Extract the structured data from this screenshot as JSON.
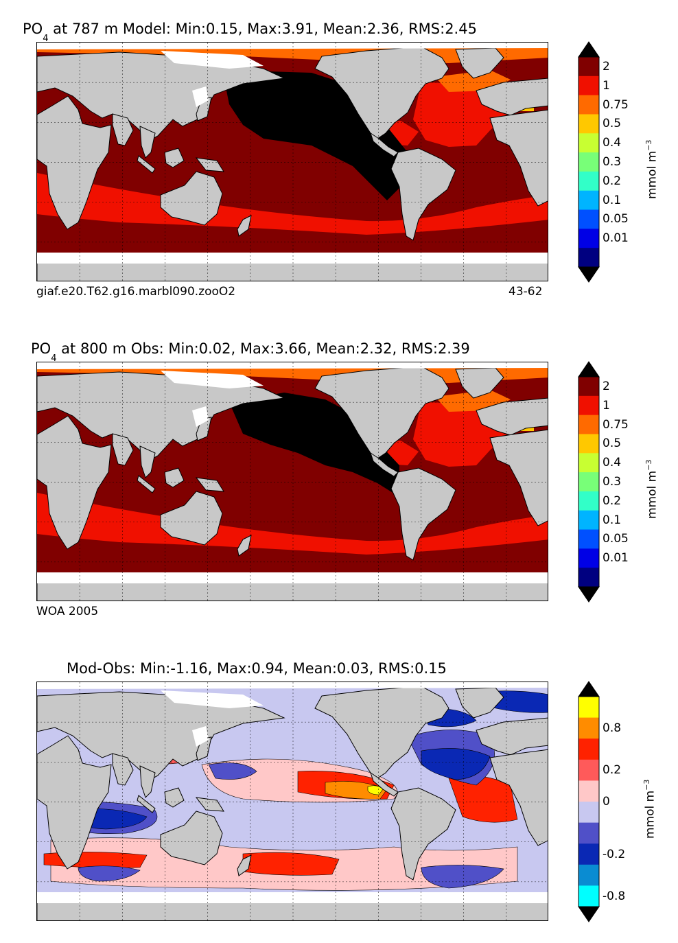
{
  "panels": [
    {
      "title_prefix": "PO",
      "title_subscript": "4",
      "title_rest": " at 787 m Model: Min:0.15, Max:3.91, Mean:2.36, RMS:2.45",
      "footer_left": "giaf.e20.T62.g16.marbl090.zooO2",
      "footer_right": "43-62"
    },
    {
      "title_prefix": "PO",
      "title_subscript": "4",
      "title_rest": " at 800 m Obs: Min:0.02, Max:3.66, Mean:2.32, RMS:2.39",
      "footer_left": "WOA 2005",
      "footer_right": ""
    },
    {
      "title_prefix": "",
      "title_subscript": "",
      "title_rest": "Mod-Obs: Min:-1.16, Max:0.94, Mean:0.03, RMS:0.15",
      "footer_left": "",
      "footer_right": ""
    }
  ],
  "colorbar_po4": {
    "labels": [
      "2",
      "1",
      "0.75",
      "0.5",
      "0.4",
      "0.3",
      "0.2",
      "0.1",
      "0.05",
      "0.01"
    ],
    "colors": [
      "#800000",
      "#f01000",
      "#ff6a00",
      "#ffc800",
      "#c8ff32",
      "#78ff78",
      "#32ffc8",
      "#00b4ff",
      "#0050ff",
      "#0000e6",
      "#000080"
    ],
    "extend_top_color": "#000000",
    "extend_bottom_color": "#000000"
  },
  "colorbar_diff": {
    "labels": [
      "0.8",
      "0.2",
      "0",
      "-0.2",
      "-0.8"
    ],
    "colors": [
      "#ffff00",
      "#ff8c00",
      "#ff2200",
      "#ff5a5a",
      "#ffc8c8",
      "#c8c8f0",
      "#5050c8",
      "#0a28b4",
      "#0a8cd2",
      "#00ffff"
    ],
    "extend_top_color": "#000000",
    "extend_bottom_color": "#000000"
  },
  "unit_base": "mmol m",
  "unit_exponent": "−3",
  "colors": {
    "land": "#c8c8c8",
    "missing": "#ffffff",
    "po4_high": "#000000",
    "po4_2": "#800000",
    "po4_1": "#f01000",
    "po4_075": "#ff6a00",
    "po4_05": "#ffc800",
    "diff_neg": "#c8c8f0",
    "diff_neg2": "#5050c8",
    "diff_neg3": "#0a28b4",
    "diff_pos": "#ffc8c8",
    "diff_pos2": "#ff5a5a",
    "diff_pos3": "#ff2200",
    "diff_pos4": "#ff8c00",
    "diff_pos5": "#ffff00"
  }
}
